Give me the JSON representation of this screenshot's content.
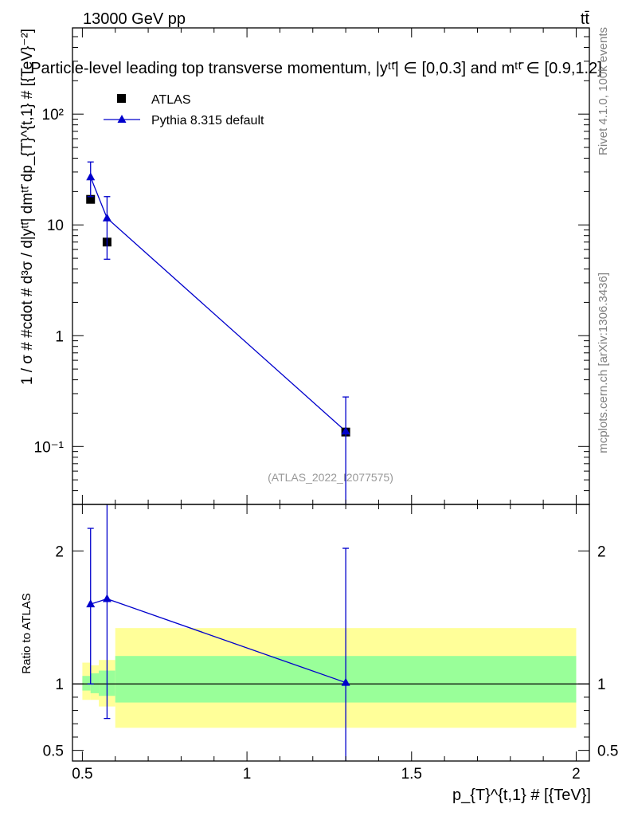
{
  "header": {
    "energy_label": "13000 GeV pp",
    "process_label": "tt̄",
    "title": "Particle-level leading top transverse momentum, |yᵗᵗ̄| ∈ [0,0.3] and mᵗᵗ̄ ∈ [0.9,1.2]",
    "watermark": "(ATLAS_2022_I2077575)",
    "side_label_top": "Rivet 4.1.0,  100k events",
    "side_label_bottom": "mcplots.cern.ch [arXiv:1306.3436]"
  },
  "colors": {
    "data": "#000000",
    "mc": "#0000cc",
    "band_inner": "#99ff99",
    "band_outer": "#ffff99"
  },
  "chart_data": [
    {
      "type": "scatter",
      "panel": "main",
      "yscale": "log",
      "ylabel": "1 / σ # #cdot # d³σ / d|yᵗᵗ̄| dmᵗᵗ̄ dp_{T}^{t,1} # [{TeV}⁻²]",
      "xlim": [
        0.47,
        2.04
      ],
      "ylim": [
        0.03,
        600
      ],
      "yticks": [
        {
          "value": 0.1,
          "label": "10⁻¹"
        },
        {
          "value": 1,
          "label": "1"
        },
        {
          "value": 10,
          "label": "10"
        },
        {
          "value": 100,
          "label": "10²"
        }
      ],
      "legend": {
        "position": "top-left",
        "entries": [
          "ATLAS",
          "Pythia 8.315 default"
        ]
      },
      "series": [
        {
          "name": "ATLAS",
          "marker": "square",
          "points": [
            {
              "x": 0.525,
              "y": 17.0,
              "xerr": [
                0.5,
                0.55
              ]
            },
            {
              "x": 0.575,
              "y": 7.0,
              "xerr": [
                0.55,
                0.6
              ]
            },
            {
              "x": 1.3,
              "y": 0.135,
              "xerr": [
                0.6,
                2.0
              ]
            }
          ]
        },
        {
          "name": "Pythia 8.315 default",
          "marker": "triangle",
          "points": [
            {
              "x": 0.525,
              "y": 27.0,
              "ylow": 18.0,
              "yhigh": 37.0
            },
            {
              "x": 0.575,
              "y": 11.5,
              "ylow": 4.9,
              "yhigh": 18.0
            },
            {
              "x": 1.3,
              "y": 0.137,
              "ylow": 0.0,
              "yhigh": 0.28
            }
          ]
        }
      ]
    },
    {
      "type": "line",
      "panel": "ratio",
      "ylabel": "Ratio to ATLAS",
      "xlabel": "p_{T}^{t,1} # [{TeV}]",
      "xlim": [
        0.47,
        2.04
      ],
      "ylim": [
        0.42,
        2.35
      ],
      "xticks": [
        {
          "value": 0.5,
          "label": "0.5"
        },
        {
          "value": 1,
          "label": "1"
        },
        {
          "value": 1.5,
          "label": "1.5"
        },
        {
          "value": 2,
          "label": "2"
        }
      ],
      "yticks": [
        {
          "value": 0.5,
          "label": "0.5"
        },
        {
          "value": 1,
          "label": "1"
        },
        {
          "value": 2,
          "label": "2"
        }
      ],
      "bands": [
        {
          "x0": 0.5,
          "x1": 0.525,
          "inner": [
            0.95,
            1.06
          ],
          "outer": [
            0.88,
            1.16
          ]
        },
        {
          "x0": 0.525,
          "x1": 0.55,
          "inner": [
            0.93,
            1.08
          ],
          "outer": [
            0.88,
            1.14
          ]
        },
        {
          "x0": 0.55,
          "x1": 0.575,
          "inner": [
            0.91,
            1.1
          ],
          "outer": [
            0.83,
            1.18
          ]
        },
        {
          "x0": 0.575,
          "x1": 0.6,
          "inner": [
            0.91,
            1.1
          ],
          "outer": [
            0.83,
            1.18
          ]
        },
        {
          "x0": 0.6,
          "x1": 2.0,
          "inner": [
            0.86,
            1.21
          ],
          "outer": [
            0.67,
            1.42
          ]
        }
      ],
      "series": [
        {
          "name": "Pythia 8.315 default",
          "points": [
            {
              "x": 0.525,
              "y": 1.6,
              "ylow": 1.0,
              "yhigh": 2.17
            },
            {
              "x": 0.575,
              "y": 1.64,
              "ylow": 0.74,
              "yhigh": 2.4
            },
            {
              "x": 1.3,
              "y": 1.01,
              "ylow": 0.38,
              "yhigh": 2.02
            }
          ]
        }
      ]
    }
  ]
}
